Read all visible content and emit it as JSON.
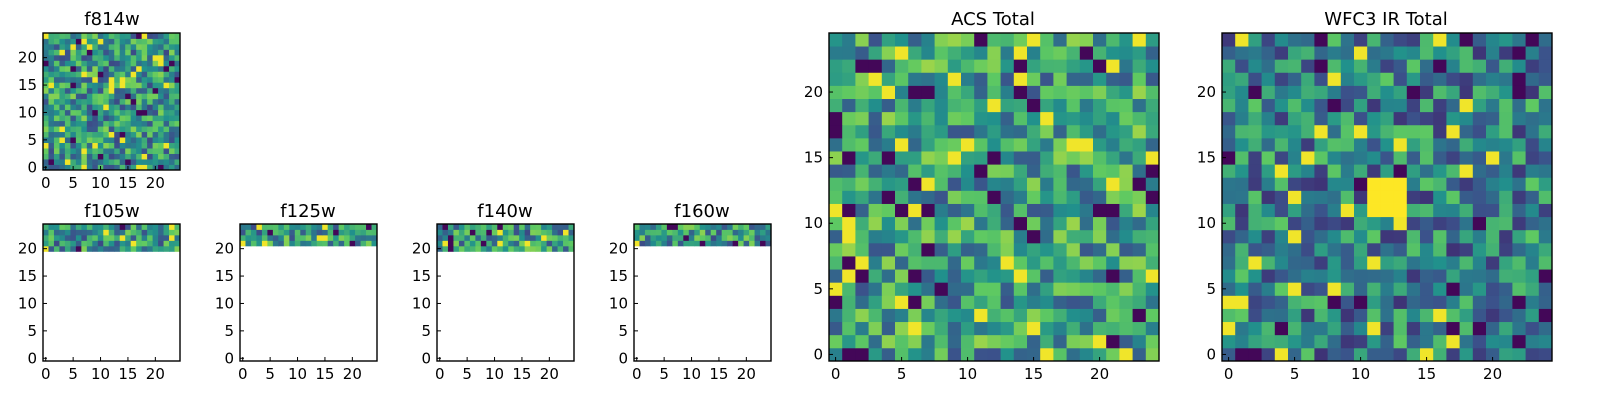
{
  "figure": {
    "colormap": [
      "#440154",
      "#3b528b",
      "#21918c",
      "#5ec962",
      "#fde725"
    ]
  },
  "chart_data": [
    {
      "type": "heatmap",
      "title": "f814w",
      "grid_size": [
        25,
        25
      ],
      "valid_rows": [
        0,
        24
      ],
      "seed": 11,
      "value_range": [
        0,
        1
      ],
      "value_bias": 0.55,
      "xticks": [
        0,
        5,
        10,
        15,
        20
      ],
      "yticks": [
        0,
        5,
        10,
        15,
        20
      ],
      "xlim": [
        -0.5,
        24.5
      ],
      "ylim": [
        -0.5,
        24.5
      ]
    },
    {
      "type": "heatmap",
      "title": "f105w",
      "grid_size": [
        25,
        25
      ],
      "valid_rows": [
        20,
        24
      ],
      "seed": 23,
      "value_range": [
        0,
        1
      ],
      "value_bias": 0.55,
      "xticks": [
        0,
        5,
        10,
        15,
        20
      ],
      "yticks": [
        0,
        5,
        10,
        15,
        20
      ],
      "xlim": [
        -0.5,
        24.5
      ],
      "ylim": [
        -0.5,
        24.5
      ]
    },
    {
      "type": "heatmap",
      "title": "f125w",
      "grid_size": [
        25,
        25
      ],
      "valid_rows": [
        21,
        24
      ],
      "seed": 37,
      "value_range": [
        0,
        1
      ],
      "value_bias": 0.55,
      "xticks": [
        0,
        5,
        10,
        15,
        20
      ],
      "yticks": [
        0,
        5,
        10,
        15,
        20
      ],
      "xlim": [
        -0.5,
        24.5
      ],
      "ylim": [
        -0.5,
        24.5
      ]
    },
    {
      "type": "heatmap",
      "title": "f140w",
      "grid_size": [
        25,
        25
      ],
      "valid_rows": [
        20,
        24
      ],
      "seed": 41,
      "value_range": [
        0,
        1
      ],
      "value_bias": 0.55,
      "xticks": [
        0,
        5,
        10,
        15,
        20
      ],
      "yticks": [
        0,
        5,
        10,
        15,
        20
      ],
      "xlim": [
        -0.5,
        24.5
      ],
      "ylim": [
        -0.5,
        24.5
      ]
    },
    {
      "type": "heatmap",
      "title": "f160w",
      "grid_size": [
        25,
        25
      ],
      "valid_rows": [
        21,
        24
      ],
      "seed": 53,
      "value_range": [
        0,
        1
      ],
      "value_bias": 0.55,
      "xticks": [
        0,
        5,
        10,
        15,
        20
      ],
      "yticks": [
        0,
        5,
        10,
        15,
        20
      ],
      "xlim": [
        -0.5,
        24.5
      ],
      "ylim": [
        -0.5,
        24.5
      ]
    },
    {
      "type": "heatmap",
      "title": "ACS Total",
      "grid_size": [
        25,
        25
      ],
      "valid_rows": [
        0,
        24
      ],
      "seed": 67,
      "value_range": [
        0,
        1
      ],
      "value_bias": 0.62,
      "xticks": [
        0,
        5,
        10,
        15,
        20
      ],
      "yticks": [
        0,
        5,
        10,
        15,
        20
      ],
      "xlim": [
        -0.5,
        24.5
      ],
      "ylim": [
        -0.5,
        24.5
      ]
    },
    {
      "type": "heatmap",
      "title": "WFC3 IR Total",
      "grid_size": [
        25,
        25
      ],
      "valid_rows": [
        0,
        24
      ],
      "seed": 79,
      "value_range": [
        0,
        1
      ],
      "value_bias": 0.38,
      "hotspot": {
        "x": [
          11,
          13
        ],
        "y": [
          11,
          13
        ],
        "value": 1.0
      },
      "xticks": [
        0,
        5,
        10,
        15,
        20
      ],
      "yticks": [
        0,
        5,
        10,
        15,
        20
      ],
      "xlim": [
        -0.5,
        24.5
      ],
      "ylim": [
        -0.5,
        24.5
      ]
    }
  ]
}
